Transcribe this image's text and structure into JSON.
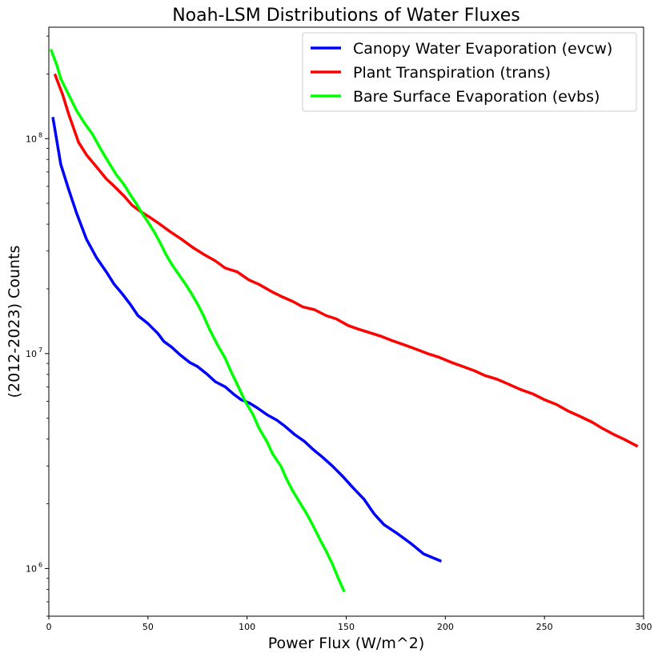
{
  "chart_data": {
    "type": "line",
    "title": "Noah-LSM Distributions of Water Fluxes",
    "xlabel": "Power Flux (W/m^2)",
    "ylabel": "(2012-2023) Counts",
    "xlim": [
      0,
      300
    ],
    "ylim": [
      600000,
      330000000
    ],
    "yscale": "log",
    "xticks": [
      0,
      50,
      100,
      150,
      200,
      250,
      300
    ],
    "xtick_labels": [
      "0",
      "50",
      "100",
      "150",
      "200",
      "250",
      "300"
    ],
    "yticks": [
      1000000,
      10000000,
      100000000
    ],
    "ytick_labels": [
      "10",
      "10",
      "10"
    ],
    "ytick_exponents": [
      "6",
      "7",
      "8"
    ],
    "grid": false,
    "legend_position": "top-right",
    "series": [
      {
        "name": "Canopy Water Evaporation (evcw)",
        "color": "#0000ff",
        "x": [
          2,
          6,
          10,
          14,
          19,
          24,
          29,
          33,
          37,
          41,
          45,
          50,
          55,
          58,
          62,
          66,
          71,
          75,
          80,
          84,
          89,
          93,
          97,
          101,
          105,
          110,
          115,
          119,
          124,
          129,
          133,
          138,
          143,
          148,
          153,
          159,
          164,
          169,
          176,
          183,
          189,
          193,
          198
        ],
        "y": [
          126000000,
          76000000,
          58000000,
          45000000,
          34000000,
          28000000,
          24000000,
          21000000,
          19000000,
          17000000,
          15000000,
          13800000,
          12400000,
          11400000,
          10700000,
          9900000,
          9100000,
          8700000,
          8000000,
          7400000,
          7000000,
          6500000,
          6100000,
          5900000,
          5600000,
          5200000,
          4900000,
          4600000,
          4200000,
          3900000,
          3600000,
          3300000,
          3000000,
          2700000,
          2400000,
          2100000,
          1800000,
          1600000,
          1450000,
          1300000,
          1170000,
          1130000,
          1080000
        ]
      },
      {
        "name": "Plant Transpiration (trans)",
        "color": "#ff0000",
        "x": [
          3,
          7,
          10,
          15,
          19,
          24,
          29,
          33,
          38,
          42,
          46,
          51,
          56,
          61,
          67,
          73,
          78,
          84,
          89,
          95,
          101,
          106,
          112,
          117,
          123,
          128,
          134,
          140,
          145,
          151,
          156,
          162,
          168,
          173,
          179,
          185,
          191,
          197,
          203,
          209,
          215,
          220,
          226,
          232,
          238,
          244,
          250,
          256,
          262,
          268,
          274,
          279,
          285,
          290,
          297
        ],
        "y": [
          200000000,
          160000000,
          130000000,
          96000000,
          84000000,
          74000000,
          65000000,
          60000000,
          54000000,
          49000000,
          46000000,
          43000000,
          40000000,
          37000000,
          34000000,
          31000000,
          29000000,
          27000000,
          25000000,
          24000000,
          22000000,
          21000000,
          19500000,
          18500000,
          17500000,
          16500000,
          16000000,
          15000000,
          14500000,
          13500000,
          13000000,
          12500000,
          12000000,
          11500000,
          11000000,
          10500000,
          10000000,
          9600000,
          9100000,
          8700000,
          8300000,
          7900000,
          7600000,
          7200000,
          6800000,
          6500000,
          6100000,
          5800000,
          5400000,
          5100000,
          4800000,
          4500000,
          4200000,
          4000000,
          3700000
        ]
      },
      {
        "name": "Bare Surface Evaporation (evbs)",
        "color": "#00ff00",
        "x": [
          1,
          4,
          6,
          10,
          14,
          18,
          22,
          26,
          30,
          34,
          38,
          41,
          44,
          47,
          50,
          53,
          56,
          59,
          62,
          66,
          69,
          72,
          75,
          78,
          81,
          85,
          89,
          92,
          95,
          99,
          103,
          106,
          110,
          113,
          117,
          120,
          123,
          127,
          130,
          133,
          137,
          140,
          143,
          146,
          149
        ],
        "y": [
          260000000,
          220000000,
          190000000,
          160000000,
          135000000,
          118000000,
          105000000,
          90000000,
          78000000,
          68000000,
          61000000,
          55000000,
          50000000,
          45000000,
          41000000,
          37000000,
          33000000,
          29000000,
          26000000,
          23000000,
          21000000,
          19000000,
          17000000,
          15000000,
          13000000,
          11000000,
          9500000,
          8200000,
          7200000,
          6000000,
          5200000,
          4500000,
          3900000,
          3400000,
          3000000,
          2600000,
          2300000,
          2000000,
          1800000,
          1600000,
          1350000,
          1200000,
          1050000,
          900000,
          780000
        ]
      }
    ]
  }
}
